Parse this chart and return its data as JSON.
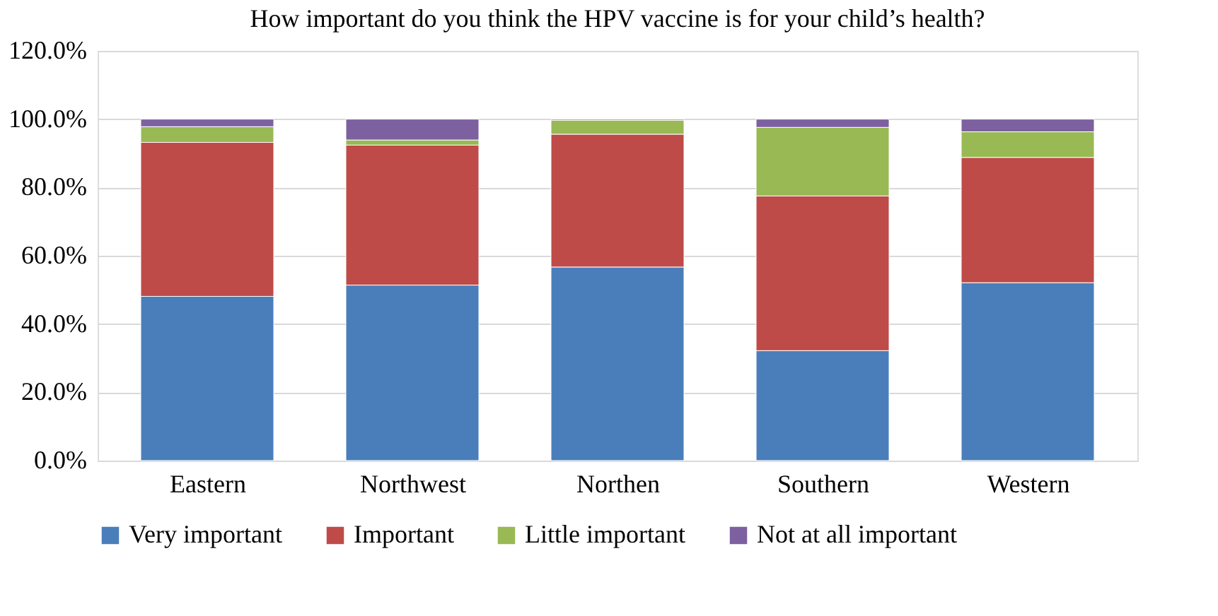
{
  "chart_data": {
    "type": "bar",
    "stacked": true,
    "title": "How important do you think the HPV vaccine is for your child’s health?",
    "categories": [
      "Eastern",
      "Northwest",
      "Northen",
      "Southern",
      "Western"
    ],
    "series": [
      {
        "name": "Very important",
        "color": "#4a7ebb",
        "values": [
          48.1,
          51.4,
          56.7,
          32.2,
          52.1
        ]
      },
      {
        "name": "Important",
        "color": "#be4b48",
        "values": [
          45.1,
          41.0,
          38.9,
          45.3,
          36.7
        ]
      },
      {
        "name": "Little important",
        "color": "#98b954",
        "values": [
          4.6,
          1.5,
          4.1,
          20.1,
          7.5
        ]
      },
      {
        "name": "Not at all important",
        "color": "#7d60a0",
        "values": [
          2.2,
          6.1,
          0.3,
          2.4,
          3.7
        ]
      }
    ],
    "ylim": [
      0,
      120
    ],
    "yticks": [
      {
        "value": 0,
        "label": "0.0%"
      },
      {
        "value": 20,
        "label": "20.0%"
      },
      {
        "value": 40,
        "label": "40.0%"
      },
      {
        "value": 60,
        "label": "60.0%"
      },
      {
        "value": 80,
        "label": "80.0%"
      },
      {
        "value": 100,
        "label": "100.0%"
      },
      {
        "value": 120,
        "label": "120.0%"
      }
    ],
    "grid": "y",
    "legend": "bottom"
  }
}
